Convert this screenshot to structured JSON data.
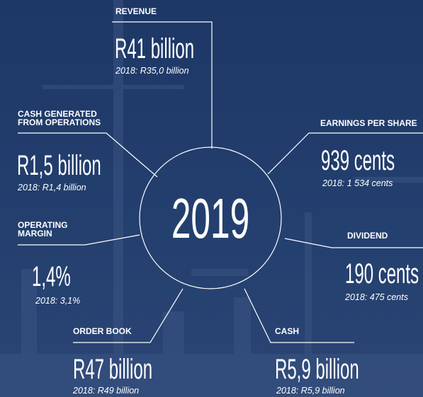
{
  "center": "2019",
  "items": [
    {
      "label": [
        "REVENUE"
      ],
      "value": "R41 billion",
      "comparison": "2018: R35,0 billion"
    },
    {
      "label": [
        "CASH GENERATED",
        "FROM OPERATIONS"
      ],
      "value": "R1,5 billion",
      "comparison": "2018: R1,4 billion"
    },
    {
      "label": [
        "EARNINGS PER SHARE"
      ],
      "value": "939 cents",
      "comparison": "2018: 1 534 cents"
    },
    {
      "label": [
        "OPERATING",
        "MARGIN"
      ],
      "value": "1,4%",
      "comparison": "2018: 3,1%"
    },
    {
      "label": [
        "DIVIDEND"
      ],
      "value": "190 cents",
      "comparison": "2018: 475 cents"
    },
    {
      "label": [
        "ORDER BOOK"
      ],
      "value": "R47 billion",
      "comparison": "2018: R49 billion"
    },
    {
      "label": [
        "CASH"
      ],
      "value": "R5,9 billion",
      "comparison": "2018: R5,9 billion"
    }
  ]
}
